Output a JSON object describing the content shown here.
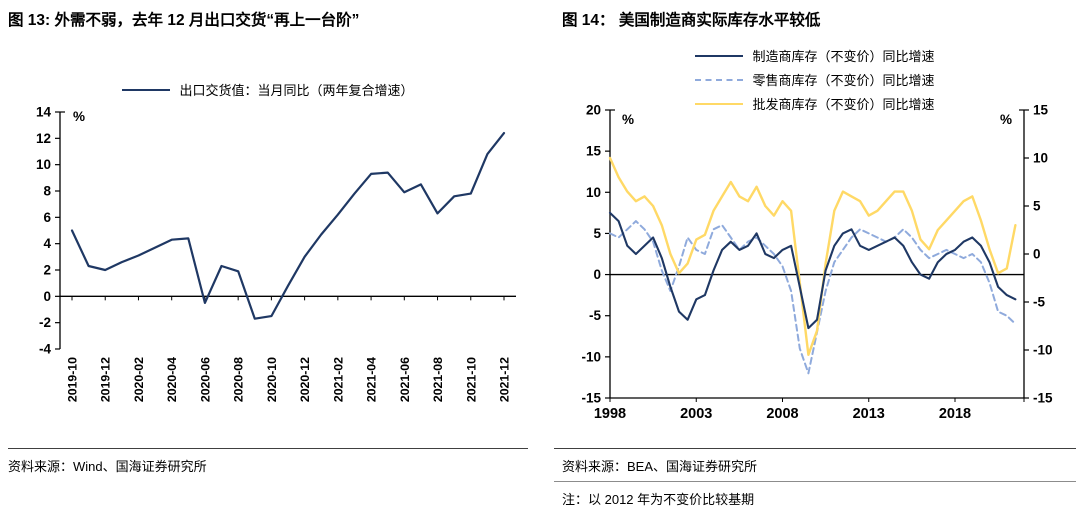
{
  "colors": {
    "navy": "#1f3864",
    "light_blue": "#8faadc",
    "yellow": "#ffd966"
  },
  "left_panel": {
    "title": "图 13: 外需不弱，去年 12 月出口交货“再上一台阶”",
    "source": "资料来源：Wind、国海证券研究所"
  },
  "right_panel": {
    "title": "图 14：  美国制造商实际库存水平较低",
    "source": "资料来源：BEA、国海证券研究所",
    "note": "注：以 2012 年为不变价比较基期"
  },
  "chart_data": [
    {
      "type": "line",
      "title": "图 13: 外需不弱，去年 12 月出口交货“再上一台阶”",
      "ylabel": "%",
      "ylim": [
        -4,
        14
      ],
      "yticks": [
        14,
        12,
        10,
        8,
        6,
        4,
        2,
        0,
        -2,
        -4
      ],
      "grid": false,
      "legend_position": "top",
      "categories": [
        "2019-10",
        "2019-11",
        "2019-12",
        "2020-01",
        "2020-02",
        "2020-03",
        "2020-04",
        "2020-05",
        "2020-06",
        "2020-07",
        "2020-08",
        "2020-09",
        "2020-10",
        "2020-11",
        "2020-12",
        "2021-01",
        "2021-02",
        "2021-03",
        "2021-04",
        "2021-05",
        "2021-06",
        "2021-07",
        "2021-08",
        "2021-09",
        "2021-10",
        "2021-11",
        "2021-12"
      ],
      "xtick_labels": [
        "2019-10",
        "2019-12",
        "2020-02",
        "2020-04",
        "2020-06",
        "2020-08",
        "2020-10",
        "2020-12",
        "2021-02",
        "2021-04",
        "2021-06",
        "2021-08",
        "2021-10",
        "2021-12"
      ],
      "series": [
        {
          "name": "出口交货值：当月同比（两年复合增速）",
          "color": "#1f3864",
          "dash": "solid",
          "width": 2.2,
          "values": [
            5.0,
            2.3,
            2.0,
            2.6,
            3.1,
            3.7,
            4.3,
            4.4,
            -0.5,
            2.3,
            1.9,
            -1.7,
            -1.5,
            0.8,
            3.0,
            4.7,
            6.2,
            7.8,
            9.3,
            9.4,
            7.9,
            8.5,
            6.3,
            7.6,
            7.8,
            10.8,
            12.4
          ]
        }
      ]
    },
    {
      "type": "line",
      "title": "图 14：美国制造商实际库存水平较低",
      "ylabel_left": "%",
      "ylabel_right": "%",
      "x_start": 1998,
      "x_end": 2022,
      "x_step": 0.5,
      "xticks": [
        1998,
        2003,
        2008,
        2013,
        2018
      ],
      "ylim_left": [
        -15,
        20
      ],
      "yticks_left": [
        20,
        15,
        10,
        5,
        0,
        -5,
        -10,
        -15
      ],
      "ylim_right": [
        -15,
        15
      ],
      "yticks_right": [
        15,
        10,
        5,
        0,
        -5,
        -10,
        -15
      ],
      "grid": false,
      "legend_position": "top",
      "series": [
        {
          "name": "制造商库存（不变价）同比增速",
          "color": "#1f3864",
          "dash": "solid",
          "axis": "left",
          "width": 2.1,
          "values": [
            7.5,
            6.5,
            3.5,
            2.5,
            3.5,
            4.5,
            2.0,
            -1.5,
            -4.5,
            -5.5,
            -3.0,
            -2.5,
            0.5,
            3.0,
            4.0,
            3.0,
            3.5,
            5.0,
            2.5,
            2.0,
            3.0,
            3.5,
            -1.5,
            -6.5,
            -5.5,
            0.5,
            3.5,
            5.0,
            5.5,
            3.5,
            3.0,
            3.5,
            4.0,
            4.5,
            3.5,
            1.5,
            0.0,
            -0.5,
            1.5,
            2.5,
            3.0,
            4.0,
            4.5,
            3.5,
            1.5,
            -1.5,
            -2.5,
            -3.0
          ]
        },
        {
          "name": "零售商库存（不变价）同比增速",
          "color": "#8faadc",
          "dash": "dashed",
          "axis": "left",
          "width": 2.0,
          "values": [
            5.0,
            4.5,
            5.5,
            6.5,
            5.5,
            4.0,
            0.5,
            -2.0,
            1.0,
            4.5,
            3.0,
            2.5,
            5.5,
            6.0,
            4.5,
            3.0,
            4.0,
            4.5,
            3.5,
            2.5,
            1.0,
            -2.0,
            -9.0,
            -12.0,
            -7.0,
            -2.0,
            1.5,
            3.0,
            4.5,
            5.5,
            5.0,
            4.5,
            4.0,
            4.5,
            5.5,
            4.5,
            3.0,
            2.0,
            2.5,
            3.0,
            2.5,
            2.0,
            2.5,
            1.5,
            -1.0,
            -4.5,
            -5.0,
            -6.0
          ]
        },
        {
          "name": "批发商库存（不变价）同比增速",
          "color": "#ffd966",
          "dash": "solid",
          "axis": "right",
          "width": 2.4,
          "values": [
            10.0,
            8.0,
            6.5,
            5.5,
            6.0,
            5.0,
            3.0,
            0.0,
            -2.0,
            -1.0,
            1.5,
            2.0,
            4.5,
            6.0,
            7.5,
            6.0,
            5.5,
            7.0,
            5.0,
            4.0,
            5.5,
            4.5,
            -3.0,
            -10.5,
            -8.0,
            -1.0,
            4.5,
            6.5,
            6.0,
            5.5,
            4.0,
            4.5,
            5.5,
            6.5,
            6.5,
            4.5,
            1.5,
            0.5,
            2.5,
            3.5,
            4.5,
            5.5,
            6.0,
            3.5,
            0.5,
            -2.0,
            -1.5,
            3.0
          ]
        }
      ]
    }
  ]
}
